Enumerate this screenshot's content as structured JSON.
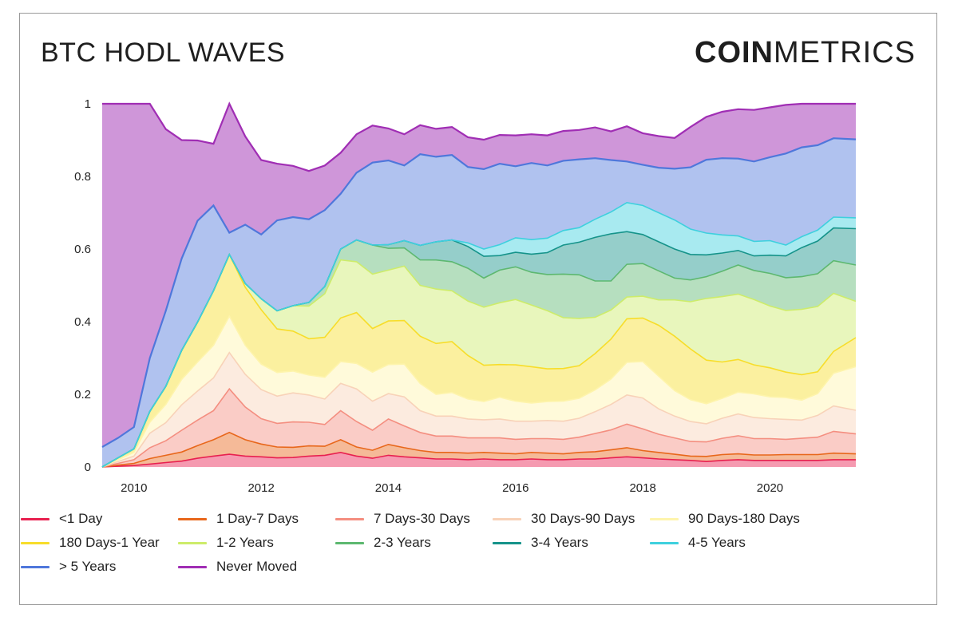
{
  "header": {
    "title": "BTC HODL WAVES",
    "logo_bold": "COIN",
    "logo_light": "METRICS"
  },
  "chart_data": {
    "type": "area",
    "stacked": true,
    "title": "BTC HODL WAVES",
    "xlabel": "",
    "ylabel": "",
    "ylim": [
      0,
      1
    ],
    "xlim": [
      2009.5,
      2021.35
    ],
    "y_ticks": [
      "0",
      "0.2",
      "0.4",
      "0.6",
      "0.8",
      "1"
    ],
    "x_ticks": [
      "2010",
      "2012",
      "2014",
      "2016",
      "2018",
      "2020"
    ],
    "grid": false,
    "legend_position": "bottom",
    "x": [
      2009.5,
      2009.75,
      2010,
      2010.25,
      2010.5,
      2010.75,
      2011,
      2011.25,
      2011.5,
      2011.75,
      2012,
      2012.25,
      2012.5,
      2012.75,
      2013,
      2013.25,
      2013.5,
      2013.75,
      2014,
      2014.25,
      2014.5,
      2014.75,
      2015,
      2015.25,
      2015.5,
      2015.75,
      2016,
      2016.25,
      2016.5,
      2016.75,
      2017,
      2017.25,
      2017.5,
      2017.75,
      2018,
      2018.25,
      2018.5,
      2018.75,
      2019,
      2019.25,
      2019.5,
      2019.75,
      2020,
      2020.25,
      2020.5,
      2020.75,
      2021,
      2021.35
    ],
    "series": [
      {
        "name": "<1 Day",
        "color": "#e8204f",
        "values": [
          0.0,
          0.002,
          0.004,
          0.008,
          0.012,
          0.016,
          0.024,
          0.03,
          0.035,
          0.03,
          0.028,
          0.025,
          0.026,
          0.03,
          0.032,
          0.04,
          0.03,
          0.024,
          0.032,
          0.028,
          0.025,
          0.022,
          0.022,
          0.02,
          0.022,
          0.02,
          0.02,
          0.022,
          0.02,
          0.02,
          0.022,
          0.022,
          0.025,
          0.028,
          0.025,
          0.022,
          0.02,
          0.018,
          0.015,
          0.018,
          0.02,
          0.018,
          0.018,
          0.018,
          0.018,
          0.018,
          0.02,
          0.02
        ]
      },
      {
        "name": "1 Day-7 Days",
        "color": "#e8671b",
        "values": [
          0.0,
          0.003,
          0.006,
          0.015,
          0.02,
          0.025,
          0.035,
          0.045,
          0.06,
          0.045,
          0.035,
          0.03,
          0.028,
          0.028,
          0.025,
          0.035,
          0.025,
          0.022,
          0.03,
          0.025,
          0.02,
          0.018,
          0.018,
          0.018,
          0.018,
          0.018,
          0.016,
          0.018,
          0.018,
          0.016,
          0.018,
          0.02,
          0.022,
          0.025,
          0.02,
          0.018,
          0.015,
          0.012,
          0.014,
          0.016,
          0.016,
          0.015,
          0.015,
          0.016,
          0.016,
          0.016,
          0.018,
          0.016
        ]
      },
      {
        "name": "7 Days-30 Days",
        "color": "#f48e80",
        "values": [
          0.0,
          0.005,
          0.01,
          0.03,
          0.04,
          0.06,
          0.07,
          0.08,
          0.12,
          0.09,
          0.07,
          0.065,
          0.07,
          0.065,
          0.06,
          0.08,
          0.07,
          0.055,
          0.07,
          0.06,
          0.05,
          0.045,
          0.045,
          0.042,
          0.04,
          0.042,
          0.04,
          0.038,
          0.04,
          0.04,
          0.042,
          0.05,
          0.055,
          0.065,
          0.06,
          0.05,
          0.045,
          0.04,
          0.04,
          0.045,
          0.05,
          0.045,
          0.045,
          0.042,
          0.045,
          0.048,
          0.06,
          0.055
        ]
      },
      {
        "name": "30 Days-90 Days",
        "color": "#f8d2b8",
        "values": [
          0.0,
          0.005,
          0.01,
          0.04,
          0.05,
          0.07,
          0.08,
          0.09,
          0.1,
          0.09,
          0.08,
          0.075,
          0.08,
          0.075,
          0.07,
          0.075,
          0.09,
          0.08,
          0.07,
          0.08,
          0.06,
          0.055,
          0.055,
          0.052,
          0.05,
          0.052,
          0.05,
          0.048,
          0.05,
          0.05,
          0.052,
          0.06,
          0.07,
          0.08,
          0.085,
          0.07,
          0.06,
          0.055,
          0.05,
          0.055,
          0.06,
          0.058,
          0.055,
          0.055,
          0.05,
          0.06,
          0.07,
          0.065
        ]
      },
      {
        "name": "90 Days-180 Days",
        "color": "#fef4ac",
        "values": [
          0.0,
          0.005,
          0.01,
          0.03,
          0.05,
          0.07,
          0.08,
          0.09,
          0.1,
          0.08,
          0.07,
          0.065,
          0.06,
          0.055,
          0.06,
          0.06,
          0.07,
          0.08,
          0.08,
          0.09,
          0.075,
          0.06,
          0.065,
          0.055,
          0.05,
          0.06,
          0.055,
          0.05,
          0.052,
          0.055,
          0.055,
          0.06,
          0.07,
          0.09,
          0.1,
          0.09,
          0.07,
          0.06,
          0.055,
          0.055,
          0.06,
          0.065,
          0.06,
          0.06,
          0.055,
          0.06,
          0.09,
          0.12
        ]
      },
      {
        "name": "180 Days-1 Year",
        "color": "#f7dd2a",
        "values": [
          0.0,
          0.005,
          0.01,
          0.03,
          0.05,
          0.08,
          0.11,
          0.15,
          0.17,
          0.16,
          0.15,
          0.12,
          0.11,
          0.1,
          0.11,
          0.12,
          0.14,
          0.12,
          0.12,
          0.12,
          0.13,
          0.14,
          0.14,
          0.12,
          0.1,
          0.09,
          0.1,
          0.1,
          0.09,
          0.09,
          0.09,
          0.1,
          0.11,
          0.12,
          0.12,
          0.14,
          0.15,
          0.14,
          0.12,
          0.1,
          0.09,
          0.08,
          0.08,
          0.07,
          0.07,
          0.06,
          0.06,
          0.08
        ]
      },
      {
        "name": "1-2 Years",
        "color": "#cdec6a",
        "values": [
          0.0,
          0.0,
          0.0,
          0.0,
          0.0,
          0.0,
          0.0,
          0.0,
          0.0,
          0.01,
          0.03,
          0.05,
          0.07,
          0.09,
          0.12,
          0.16,
          0.14,
          0.15,
          0.14,
          0.15,
          0.14,
          0.15,
          0.14,
          0.15,
          0.16,
          0.17,
          0.18,
          0.17,
          0.16,
          0.14,
          0.13,
          0.1,
          0.08,
          0.06,
          0.06,
          0.07,
          0.1,
          0.13,
          0.17,
          0.18,
          0.18,
          0.18,
          0.17,
          0.17,
          0.18,
          0.18,
          0.16,
          0.1
        ]
      },
      {
        "name": "2-3 Years",
        "color": "#5db870",
        "values": [
          0.0,
          0.0,
          0.0,
          0.0,
          0.0,
          0.0,
          0.0,
          0.0,
          0.0,
          0.0,
          0.0,
          0.0,
          0.0,
          0.01,
          0.02,
          0.03,
          0.06,
          0.08,
          0.06,
          0.05,
          0.07,
          0.08,
          0.08,
          0.09,
          0.08,
          0.09,
          0.09,
          0.09,
          0.1,
          0.12,
          0.12,
          0.1,
          0.08,
          0.09,
          0.09,
          0.08,
          0.06,
          0.06,
          0.06,
          0.07,
          0.08,
          0.08,
          0.09,
          0.09,
          0.09,
          0.09,
          0.09,
          0.1
        ]
      },
      {
        "name": "3-4 Years",
        "color": "#15938a",
        "values": [
          0.0,
          0.0,
          0.0,
          0.0,
          0.0,
          0.0,
          0.0,
          0.0,
          0.0,
          0.0,
          0.0,
          0.0,
          0.0,
          0.0,
          0.0,
          0.0,
          0.0,
          0.0,
          0.01,
          0.02,
          0.04,
          0.05,
          0.06,
          0.06,
          0.06,
          0.04,
          0.04,
          0.05,
          0.06,
          0.08,
          0.09,
          0.12,
          0.13,
          0.09,
          0.08,
          0.08,
          0.08,
          0.07,
          0.06,
          0.05,
          0.04,
          0.04,
          0.05,
          0.06,
          0.08,
          0.09,
          0.09,
          0.1
        ]
      },
      {
        "name": "4-5 Years",
        "color": "#3ed0de",
        "values": [
          0.0,
          0.0,
          0.0,
          0.0,
          0.0,
          0.0,
          0.0,
          0.0,
          0.0,
          0.0,
          0.0,
          0.0,
          0.0,
          0.0,
          0.0,
          0.0,
          0.0,
          0.0,
          0.0,
          0.0,
          0.0,
          0.0,
          0.0,
          0.01,
          0.02,
          0.03,
          0.04,
          0.04,
          0.04,
          0.04,
          0.04,
          0.05,
          0.06,
          0.08,
          0.08,
          0.08,
          0.08,
          0.07,
          0.06,
          0.05,
          0.04,
          0.04,
          0.04,
          0.03,
          0.03,
          0.03,
          0.03,
          0.03
        ]
      },
      {
        "name": "> 5 Years",
        "color": "#4f77db",
        "values": [
          0.055,
          0.055,
          0.06,
          0.147,
          0.208,
          0.253,
          0.279,
          0.235,
          0.06,
          0.162,
          0.177,
          0.249,
          0.244,
          0.229,
          0.21,
          0.152,
          0.185,
          0.227,
          0.232,
          0.207,
          0.251,
          0.234,
          0.234,
          0.209,
          0.22,
          0.223,
          0.197,
          0.211,
          0.2,
          0.192,
          0.188,
          0.168,
          0.143,
          0.113,
          0.112,
          0.124,
          0.141,
          0.17,
          0.202,
          0.211,
          0.213,
          0.22,
          0.23,
          0.252,
          0.246,
          0.234,
          0.217,
          0.216
        ]
      },
      {
        "name": "Never Moved",
        "color": "#a02eb4",
        "values": [
          0.945,
          0.945,
          0.94,
          0.7,
          0.5,
          0.326,
          0.221,
          0.17,
          0.355,
          0.243,
          0.205,
          0.156,
          0.141,
          0.133,
          0.123,
          0.113,
          0.106,
          0.102,
          0.088,
          0.086,
          0.08,
          0.077,
          0.077,
          0.082,
          0.081,
          0.079,
          0.085,
          0.079,
          0.083,
          0.082,
          0.081,
          0.085,
          0.079,
          0.097,
          0.087,
          0.087,
          0.085,
          0.111,
          0.118,
          0.128,
          0.136,
          0.142,
          0.137,
          0.134,
          0.123,
          0.123,
          0.117,
          0.108
        ]
      }
    ]
  }
}
